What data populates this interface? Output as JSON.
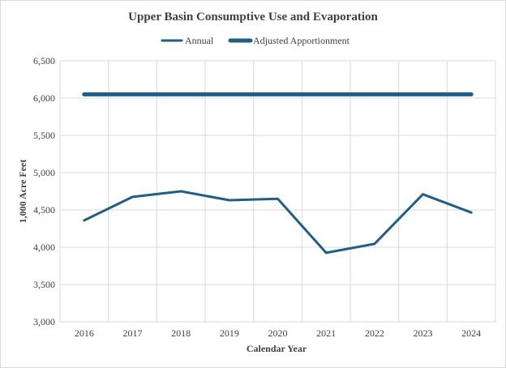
{
  "chart_data": {
    "type": "line",
    "title": "Upper Basin Consumptive Use and Evaporation",
    "xlabel": "Calendar Year",
    "ylabel": "1,000 Acre Feet",
    "x": [
      "2016",
      "2017",
      "2018",
      "2019",
      "2020",
      "2021",
      "2022",
      "2023",
      "2024"
    ],
    "ylim": [
      3000,
      6500
    ],
    "yticks": [
      3000,
      3500,
      4000,
      4500,
      5000,
      5500,
      6000,
      6500
    ],
    "ytick_labels": [
      "3,000",
      "3,500",
      "4,000",
      "4,500",
      "5,000",
      "5,500",
      "6,000",
      "6,500"
    ],
    "grid": true,
    "legend_position": "top",
    "series": [
      {
        "name": "Annual",
        "color": "#1f5e85",
        "values": [
          4360,
          4675,
          4750,
          4630,
          4650,
          3925,
          4045,
          4710,
          4465
        ]
      },
      {
        "name": "Adjusted Apportionment",
        "color": "#1f5e85",
        "values": [
          6050,
          6050,
          6050,
          6050,
          6050,
          6050,
          6050,
          6050,
          6050
        ]
      }
    ]
  }
}
